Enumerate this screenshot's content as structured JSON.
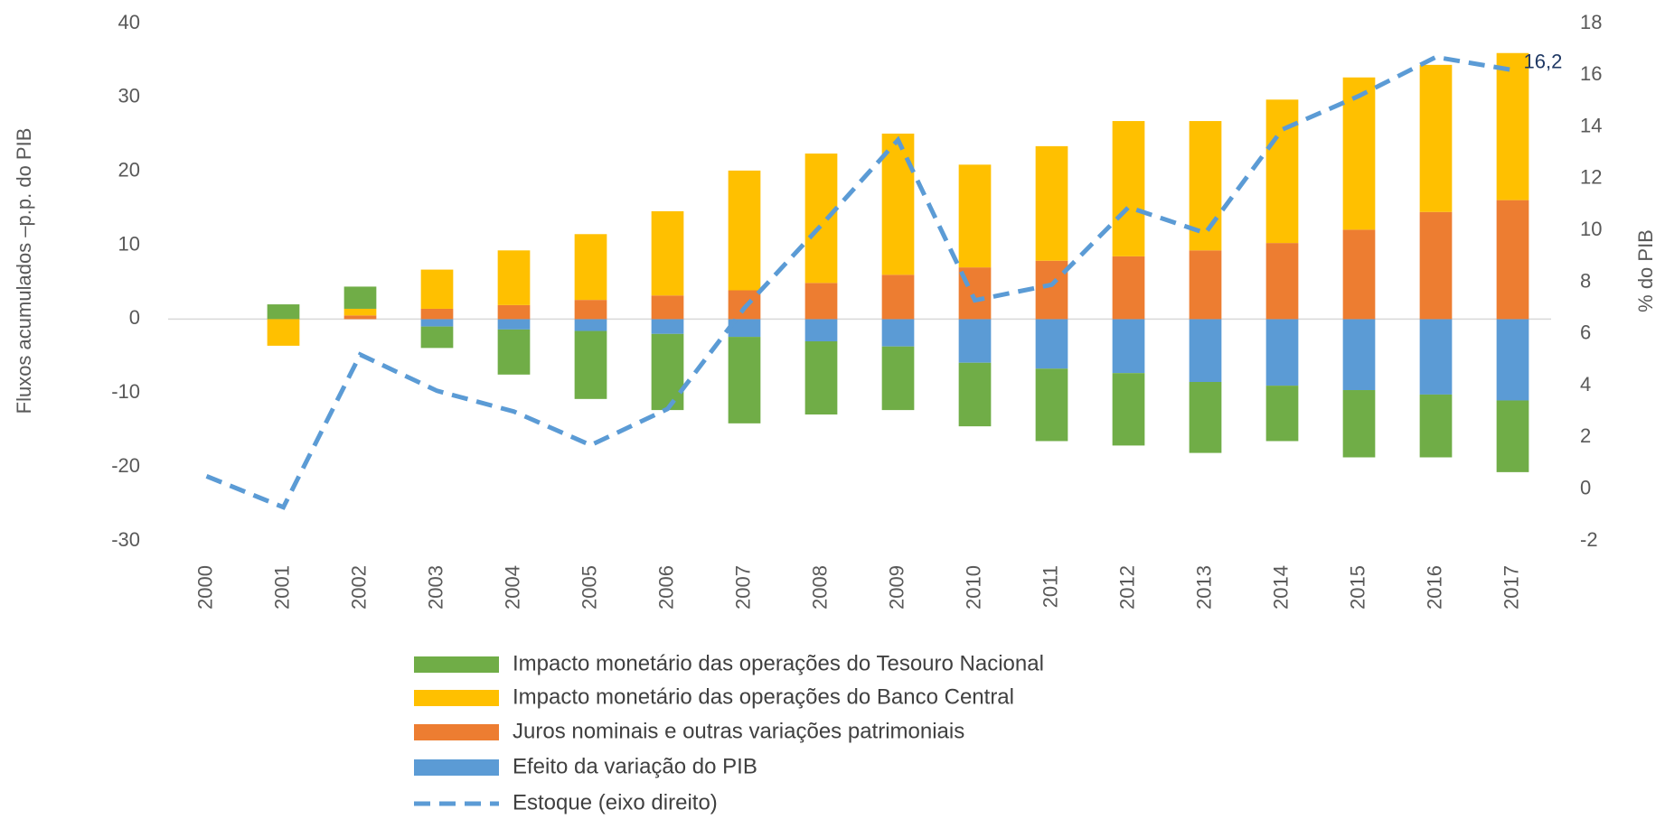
{
  "chart_data": {
    "type": "bar",
    "stacked": true,
    "y_label": "Fluxos acumulados –p.p. do PIB",
    "y2_label": "% do PIB",
    "categories": [
      "2000",
      "2001",
      "2002",
      "2003",
      "2004",
      "2005",
      "2006",
      "2007",
      "2008",
      "2009",
      "2010",
      "2011",
      "2012",
      "2013",
      "2014",
      "2015",
      "2016",
      "2017"
    ],
    "series": [
      {
        "name": "Impacto monetário das operações do Tesouro Nacional",
        "color": "#70ad47",
        "values": [
          0,
          2.0,
          3.0,
          -2.9,
          -6.1,
          -9.2,
          -10.3,
          -11.7,
          -9.9,
          -8.6,
          -8.6,
          -9.8,
          -9.8,
          -9.6,
          -7.5,
          -9.1,
          -8.5,
          -9.7
        ]
      },
      {
        "name": "Impacto monetário das operações do Banco Central",
        "color": "#ffc000",
        "values": [
          0,
          -3.6,
          0.9,
          5.3,
          7.4,
          8.9,
          11.4,
          16.2,
          17.5,
          19.1,
          13.9,
          15.5,
          18.3,
          17.5,
          19.4,
          20.6,
          19.9,
          19.9
        ]
      },
      {
        "name": "Juros nominais e outras variações patrimoniais",
        "color": "#ed7d31",
        "values": [
          0,
          0,
          0.5,
          1.4,
          1.9,
          2.6,
          3.2,
          3.9,
          4.9,
          6.0,
          7.0,
          7.9,
          8.5,
          9.3,
          10.3,
          12.1,
          14.5,
          16.1
        ]
      },
      {
        "name": "Efeito da variação do PIB",
        "color": "#5b9bd5",
        "values": [
          0,
          0,
          0,
          -1.0,
          -1.4,
          -1.6,
          -2.0,
          -2.4,
          -3.0,
          -3.7,
          -5.9,
          -6.7,
          -7.3,
          -8.5,
          -9.0,
          -9.6,
          -10.2,
          -11.0
        ]
      },
      {
        "name": "Estoque (eixo direito)",
        "color": "#5b9bd5",
        "type": "line",
        "axis": "y2",
        "dashed": true,
        "values": [
          0.5,
          -0.7,
          5.2,
          3.8,
          3.0,
          1.7,
          3.1,
          7.0,
          10.2,
          13.5,
          7.3,
          7.9,
          10.9,
          9.9,
          13.9,
          15.2,
          16.7,
          16.2
        ],
        "value_labels": [
          null,
          null,
          null,
          null,
          null,
          null,
          null,
          null,
          null,
          null,
          null,
          null,
          null,
          null,
          null,
          null,
          null,
          "16,2"
        ]
      }
    ],
    "ylim": [
      -30,
      40
    ],
    "yticks": [
      -30,
      -20,
      -10,
      0,
      10,
      20,
      30,
      40
    ],
    "y2lim": [
      -2,
      18
    ],
    "y2ticks": [
      -2,
      0,
      2,
      4,
      6,
      8,
      10,
      12,
      14,
      16,
      18
    ],
    "grid": false,
    "legend": "bottom"
  }
}
